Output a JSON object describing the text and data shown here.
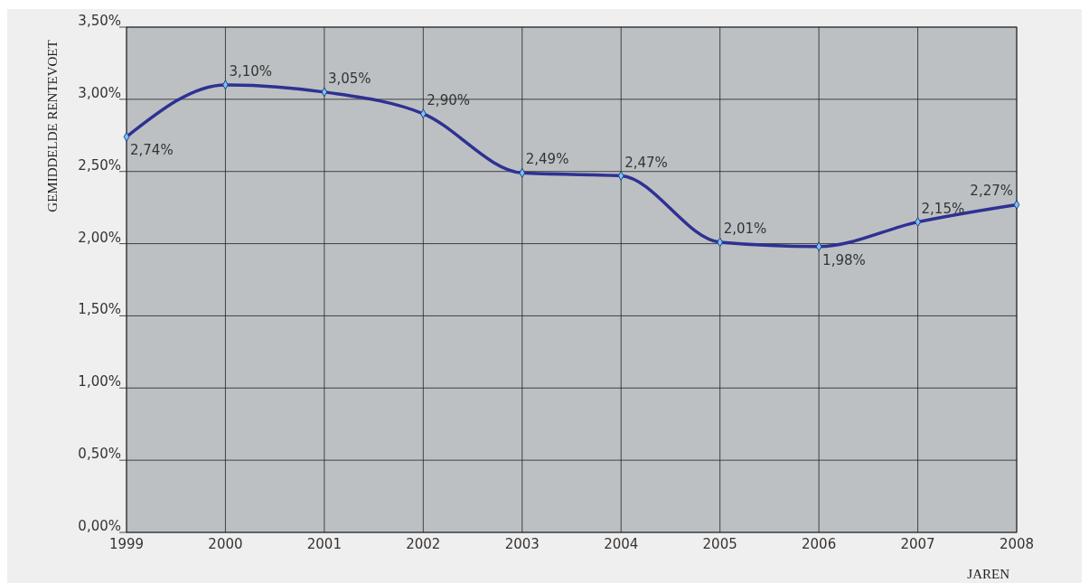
{
  "chart_data": {
    "type": "line",
    "ylabel": "GEMIDDELDE RENTEVOET",
    "xlabel": "JAREN",
    "x": [
      1999,
      2000,
      2001,
      2002,
      2003,
      2004,
      2005,
      2006,
      2007,
      2008
    ],
    "series": [
      {
        "color": "#2e3192",
        "values": [
          2.74,
          3.1,
          3.05,
          2.9,
          2.49,
          2.47,
          2.01,
          1.98,
          2.15,
          2.27
        ],
        "value_labels": [
          "2,74%",
          "3,10%",
          "3,05%",
          "2,90%",
          "2,49%",
          "2,47%",
          "2,01%",
          "1,98%",
          "2,15%",
          "2,27%"
        ]
      }
    ],
    "xlim": [
      1999,
      2008
    ],
    "xticks": [
      1999,
      2000,
      2001,
      2002,
      2003,
      2004,
      2005,
      2006,
      2007,
      2008
    ],
    "ylim": [
      0,
      3.5
    ],
    "yticks": [
      {
        "value": 0,
        "label": "0,00%"
      },
      {
        "value": 0.5,
        "label": "0,50%"
      },
      {
        "value": 1,
        "label": "1,00%"
      },
      {
        "value": 1.5,
        "label": "1,50%"
      },
      {
        "value": 2,
        "label": "2,00%"
      },
      {
        "value": 2.5,
        "label": "2,50%"
      },
      {
        "value": 3,
        "label": "3,00%"
      },
      {
        "value": 3.5,
        "label": "3,50%"
      }
    ],
    "grid": true,
    "marker": "diamond",
    "line_style": "solid"
  }
}
